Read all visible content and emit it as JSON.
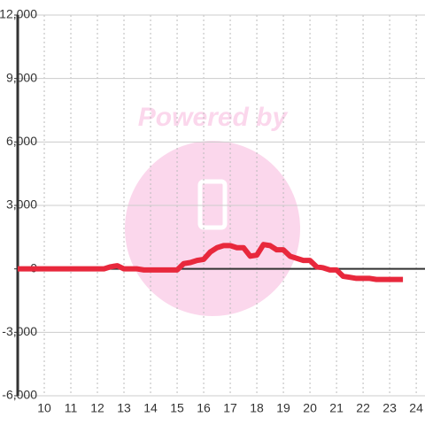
{
  "chart_data": {
    "type": "line",
    "watermark": "Powered by",
    "x": [
      9,
      9.25,
      9.5,
      9.75,
      10,
      10.25,
      10.5,
      10.75,
      11,
      11.25,
      11.5,
      11.75,
      12,
      12.25,
      12.5,
      12.75,
      13,
      13.25,
      13.5,
      13.75,
      14,
      14.25,
      14.5,
      14.75,
      15,
      15.25,
      15.5,
      15.75,
      16,
      16.25,
      16.5,
      16.75,
      17,
      17.25,
      17.5,
      17.75,
      18,
      18.25,
      18.5,
      18.75,
      19,
      19.25,
      19.5,
      19.75,
      20,
      20.25,
      20.5,
      20.75,
      21,
      21.25,
      21.5,
      21.75,
      22,
      22.25,
      22.5,
      22.75,
      23,
      23.25,
      23.5
    ],
    "values": [
      0,
      0,
      0,
      0,
      0,
      0,
      0,
      0,
      0,
      0,
      0,
      0,
      0,
      0,
      100,
      150,
      0,
      0,
      0,
      -50,
      -50,
      -50,
      -50,
      -50,
      -50,
      250,
      300,
      400,
      450,
      800,
      1000,
      1100,
      1100,
      1000,
      1000,
      600,
      650,
      1150,
      1100,
      900,
      900,
      600,
      500,
      400,
      400,
      100,
      50,
      -50,
      -50,
      -350,
      -400,
      -450,
      -450,
      -450,
      -500,
      -500,
      -500,
      -500,
      -500
    ],
    "color": "#e8283c",
    "xlim": [
      9,
      24.33
    ],
    "xticks": [
      10,
      11,
      12,
      13,
      14,
      15,
      16,
      17,
      18,
      19,
      20,
      21,
      22,
      23,
      24
    ],
    "ylim": [
      -6000,
      12000
    ],
    "yticks": [
      {
        "value": -6000,
        "label": "-6,000"
      },
      {
        "value": -3000,
        "label": "-3,000"
      },
      0,
      {
        "value": 3000,
        "label": "3,000"
      },
      {
        "value": 6000,
        "label": "6,000"
      },
      {
        "value": 9000,
        "label": "9,000"
      },
      {
        "value": 12000,
        "label": "12,000"
      }
    ],
    "grid": true
  }
}
